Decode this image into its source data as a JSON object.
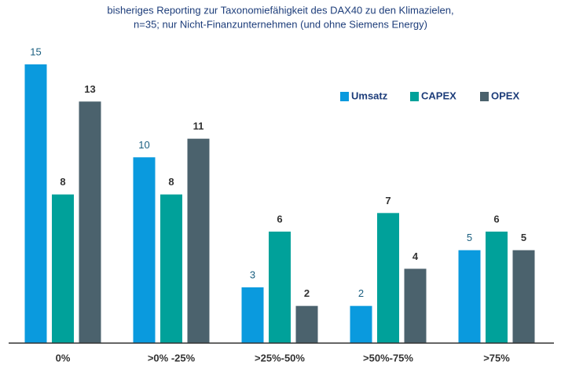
{
  "chart_data": {
    "type": "bar",
    "title": [
      "bisheriges Reporting zur Taxonomiefähigkeit des DAX40 zu den Klimazielen,",
      "n=35; nur Nicht-Finanzunternehmen (und ohne Siemens Energy)"
    ],
    "categories": [
      "0%",
      ">0% -25%",
      ">25%-50%",
      ">50%-75%",
      ">75%"
    ],
    "series": [
      {
        "name": "Umsatz",
        "color": "#0a9ade",
        "values": [
          15,
          10,
          3,
          2,
          5
        ]
      },
      {
        "name": "CAPEX",
        "color": "#00a19a",
        "values": [
          8,
          8,
          6,
          7,
          6
        ]
      },
      {
        "name": "OPEX",
        "color": "#4b626d",
        "values": [
          13,
          11,
          2,
          4,
          5
        ]
      }
    ],
    "ylim": [
      0,
      15
    ],
    "legend": "upper right"
  }
}
